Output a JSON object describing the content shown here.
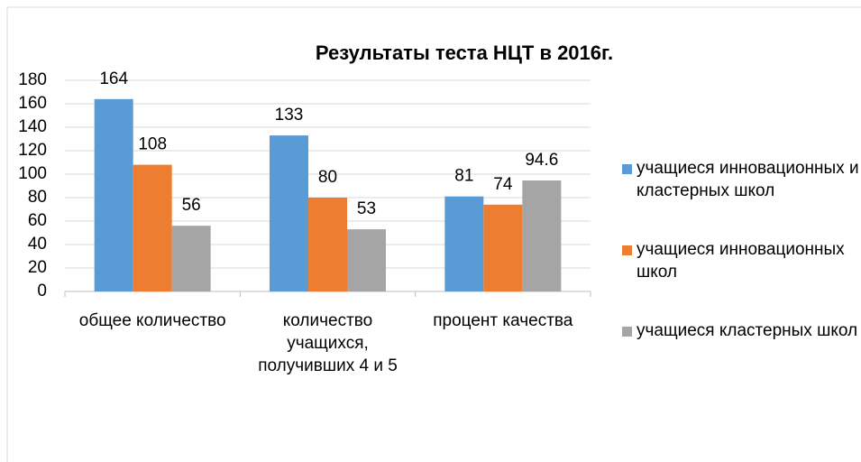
{
  "chart_data": {
    "type": "bar",
    "title": "Результаты теста НЦТ в 2016г.",
    "categories": [
      "общее количество",
      "количество учащихся, получивших 4 и 5",
      "процент качества"
    ],
    "series": [
      {
        "name": "учащиеся инновационных и кластерных школ",
        "color": "#5b9bd5",
        "values": [
          164,
          133,
          81
        ]
      },
      {
        "name": "учащиеся инновационных школ",
        "color": "#ed7d31",
        "values": [
          108,
          80,
          74
        ]
      },
      {
        "name": "учащиеся кластерных школ",
        "color": "#a5a5a5",
        "values": [
          56,
          53,
          94.6
        ]
      }
    ],
    "ylim": [
      0,
      180
    ],
    "yticks": [
      0,
      20,
      40,
      60,
      80,
      100,
      120,
      140,
      160,
      180
    ],
    "grid": true,
    "legend": "right"
  }
}
